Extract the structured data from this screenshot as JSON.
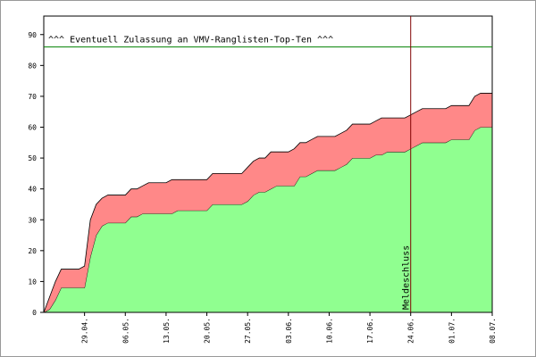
{
  "chart_data": {
    "type": "stacked_area",
    "categories": [
      null,
      null,
      null,
      null,
      null,
      null,
      null,
      "29.04.",
      null,
      null,
      null,
      null,
      null,
      null,
      "06.05.",
      null,
      null,
      null,
      null,
      null,
      null,
      "13.05.",
      null,
      null,
      null,
      null,
      null,
      null,
      "20.05.",
      null,
      null,
      null,
      null,
      null,
      null,
      "27.05.",
      null,
      null,
      null,
      null,
      null,
      null,
      "03.06.",
      null,
      null,
      null,
      null,
      null,
      null,
      "10.06.",
      null,
      null,
      null,
      null,
      null,
      null,
      "17.06.",
      null,
      null,
      null,
      null,
      null,
      null,
      "24.06.",
      null,
      null,
      null,
      null,
      null,
      null,
      "01.07.",
      null,
      null,
      null,
      null,
      null,
      null,
      "08.07."
    ],
    "series": [
      {
        "color": "#90ff90",
        "values": [
          0,
          1,
          4,
          8,
          8,
          8,
          8,
          8,
          18,
          25,
          28,
          29,
          29,
          29,
          29,
          31,
          31,
          32,
          32,
          32,
          32,
          32,
          32,
          33,
          33,
          33,
          33,
          33,
          33,
          35,
          35,
          35,
          35,
          35,
          35,
          36,
          38,
          39,
          39,
          40,
          41,
          41,
          41,
          41,
          44,
          44,
          45,
          46,
          46,
          46,
          46,
          47,
          48,
          50,
          50,
          50,
          50,
          51,
          51,
          52,
          52,
          52,
          52,
          53,
          54,
          55,
          55,
          55,
          55,
          55,
          56,
          56,
          56,
          56,
          59,
          60,
          60,
          60
        ]
      },
      {
        "color": "#ff8888",
        "values": [
          0,
          4,
          6,
          6,
          6,
          6,
          6,
          7,
          12,
          10,
          9,
          9,
          9,
          9,
          9,
          9,
          9,
          9,
          10,
          10,
          10,
          10,
          11,
          10,
          10,
          10,
          10,
          10,
          10,
          10,
          10,
          10,
          10,
          10,
          10,
          11,
          11,
          11,
          11,
          12,
          11,
          11,
          11,
          12,
          11,
          11,
          11,
          11,
          11,
          11,
          11,
          11,
          11,
          11,
          11,
          11,
          11,
          11,
          12,
          11,
          11,
          11,
          11,
          11,
          11,
          11,
          11,
          11,
          11,
          11,
          11,
          11,
          11,
          11,
          11,
          11,
          11,
          11
        ]
      }
    ],
    "ylim": [
      0,
      96
    ],
    "yticks": [
      0,
      10,
      20,
      30,
      40,
      50,
      60,
      70,
      80,
      90
    ],
    "hline": {
      "label": "^^^ Eventuell Zulassung an VMV-Ranglisten-Top-Ten ^^^",
      "value": 86,
      "color": "#008000"
    },
    "vline": {
      "label": "Meldeschluss",
      "category": "24.06.",
      "color": "#800000"
    }
  }
}
